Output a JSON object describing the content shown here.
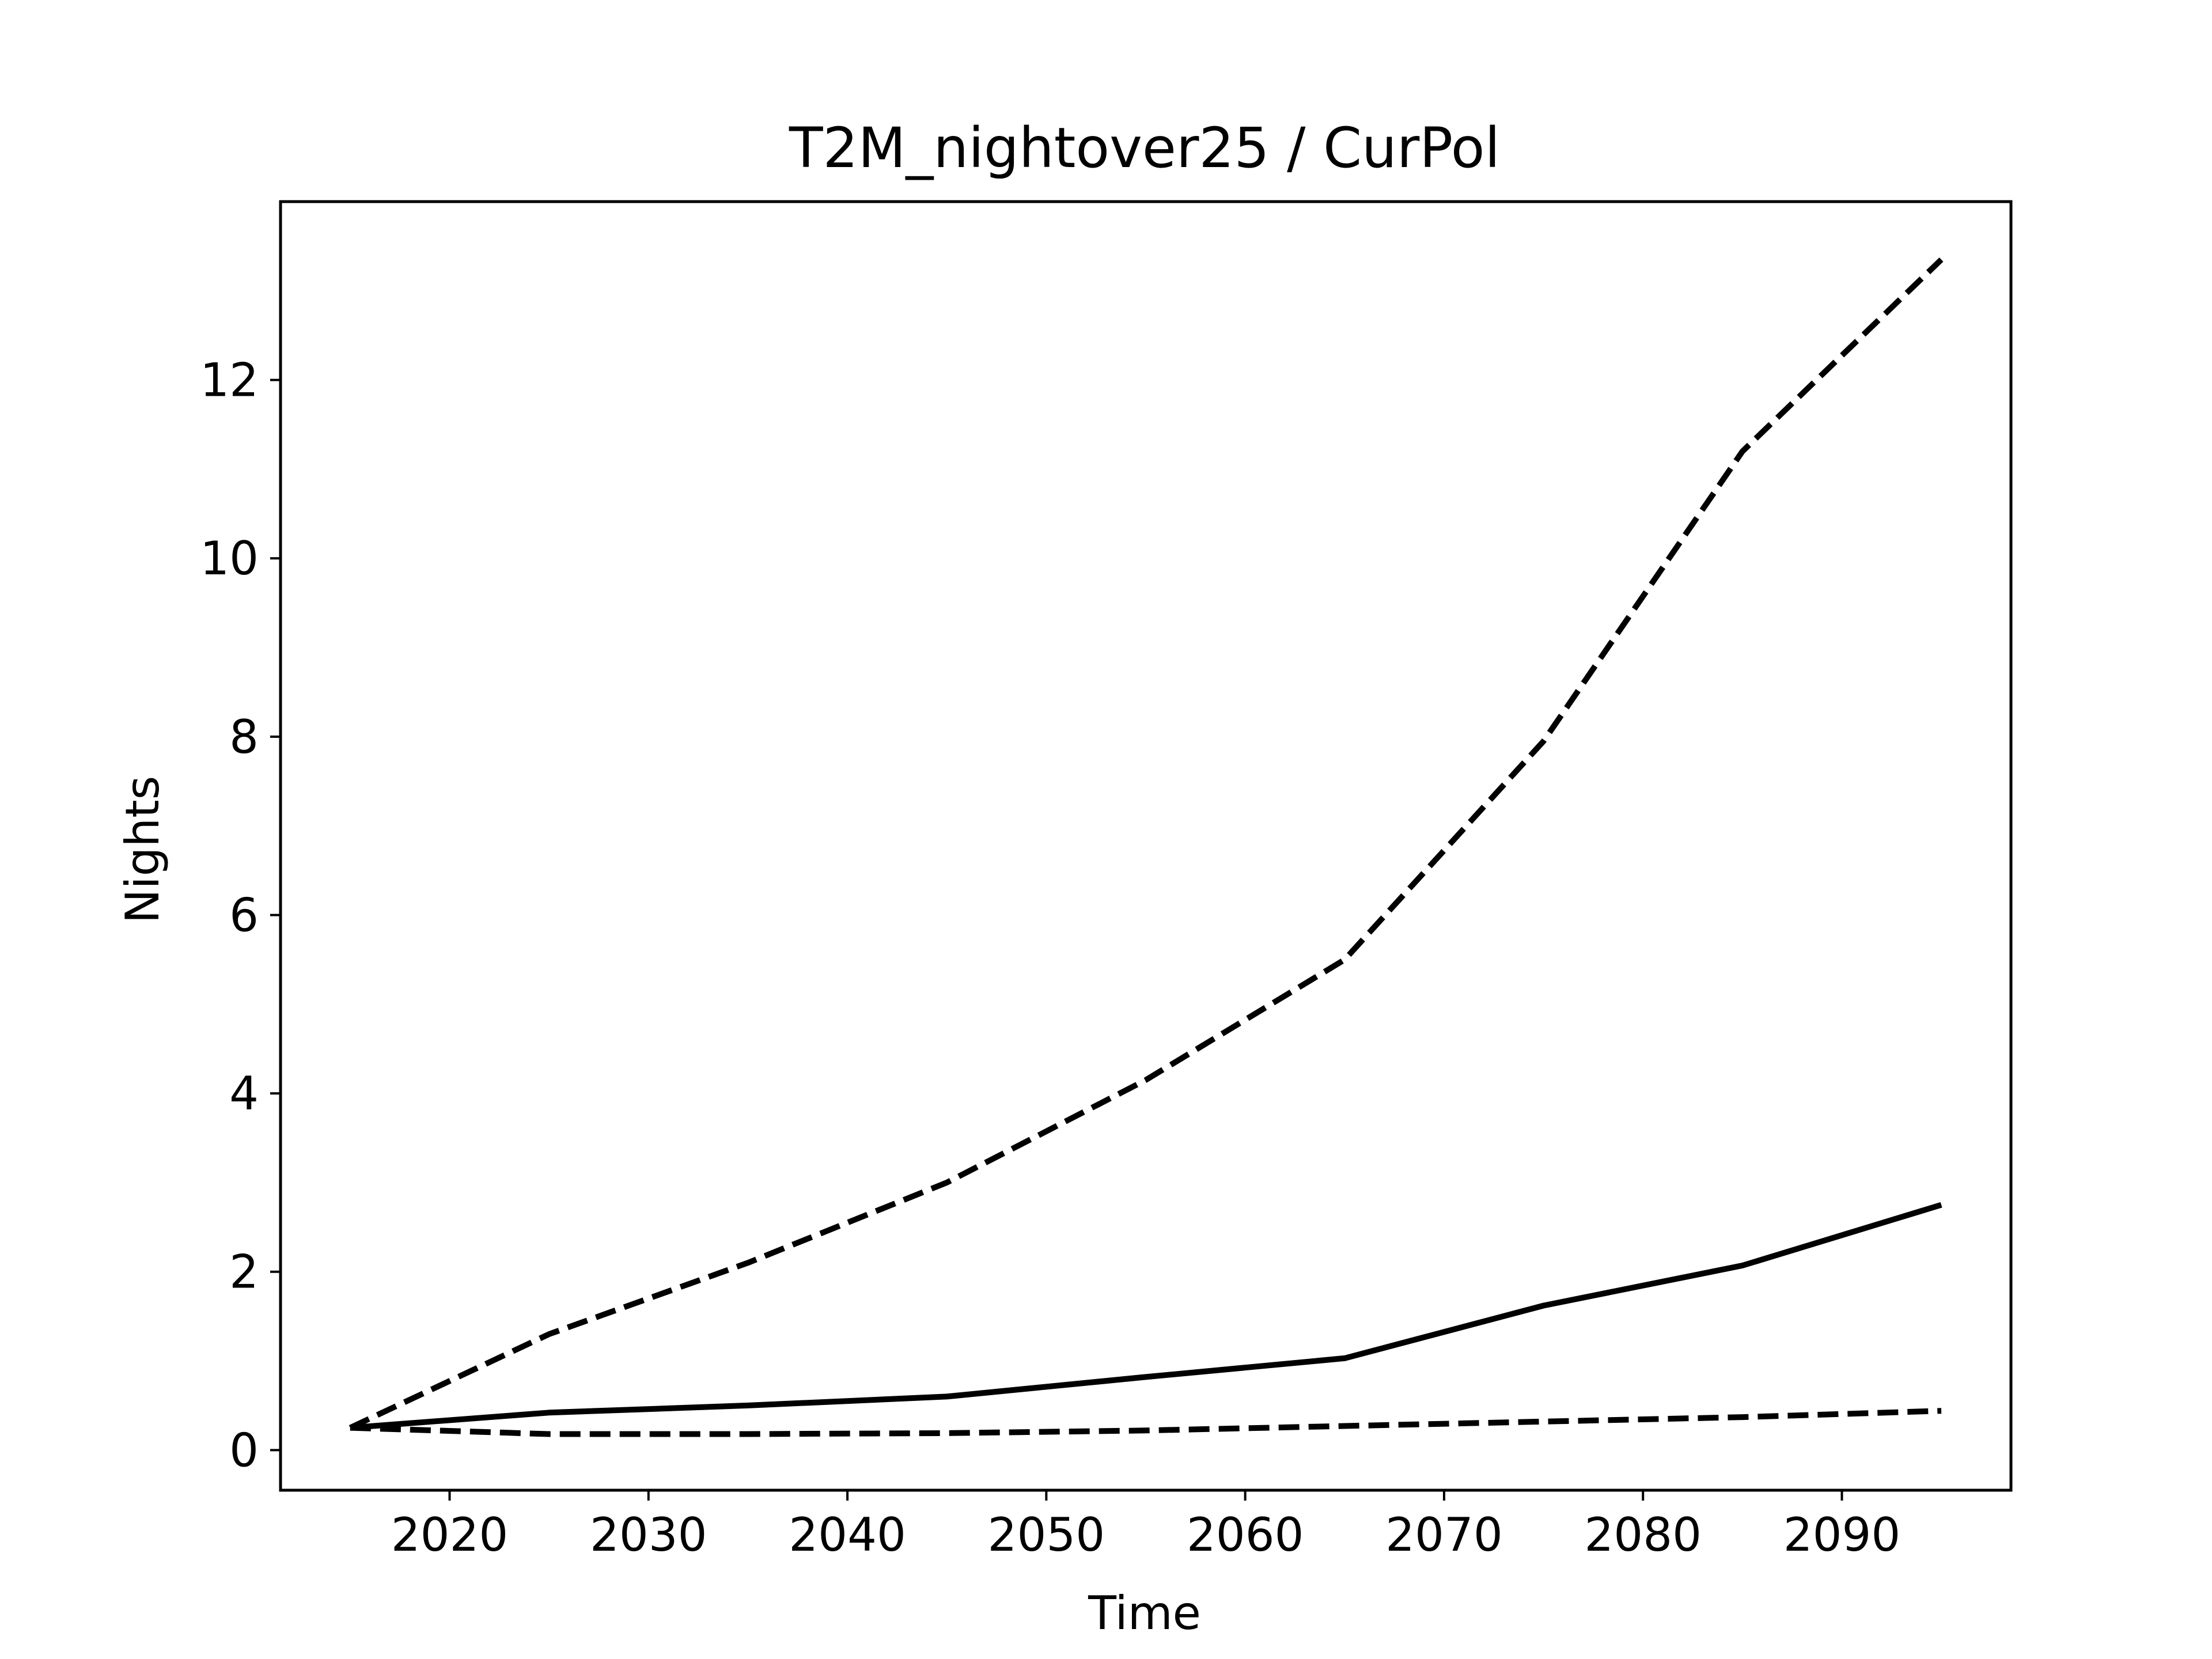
{
  "chart_data": {
    "type": "line",
    "title": "T2M_nightover25 / CurPol",
    "xlabel": "Time",
    "ylabel": "Nights",
    "xlim": [
      2011.5,
      2098.5
    ],
    "ylim": [
      -0.45,
      14.0
    ],
    "x_ticks": [
      2020,
      2030,
      2040,
      2050,
      2060,
      2070,
      2080,
      2090
    ],
    "y_ticks": [
      0,
      2,
      4,
      6,
      8,
      10,
      12
    ],
    "grid": false,
    "line_color": "#000000",
    "x": [
      2015,
      2025,
      2035,
      2045,
      2055,
      2065,
      2075,
      2085,
      2095
    ],
    "series": [
      {
        "style": "dashed",
        "values": [
          0.25,
          1.3,
          2.1,
          3.0,
          4.15,
          5.5,
          7.95,
          11.2,
          13.35
        ]
      },
      {
        "style": "solid",
        "values": [
          0.25,
          0.42,
          0.5,
          0.6,
          0.82,
          1.03,
          1.62,
          2.07,
          2.75
        ]
      },
      {
        "style": "dashed",
        "values": [
          0.25,
          0.18,
          0.18,
          0.19,
          0.22,
          0.27,
          0.32,
          0.37,
          0.44
        ]
      }
    ]
  }
}
